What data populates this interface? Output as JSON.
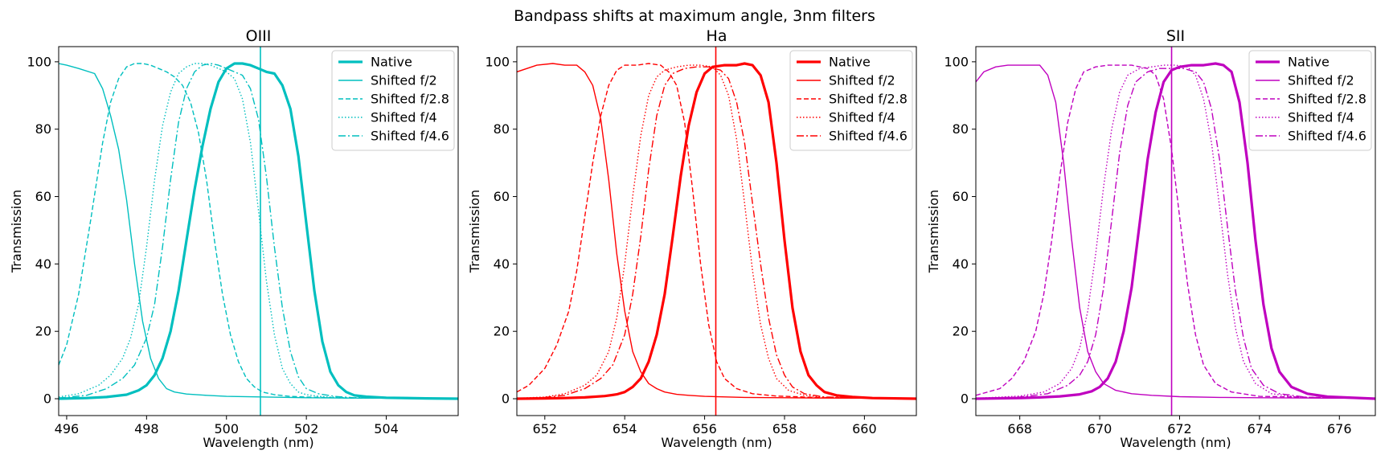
{
  "figure": {
    "title": "Bandpass shifts at maximum angle, 3nm filters"
  },
  "series_labels": [
    "Native",
    "Shifted f/2",
    "Shifted f/2.8",
    "Shifted f/4",
    "Shifted f/4.6"
  ],
  "chart_data": [
    {
      "type": "line",
      "title": "OIII",
      "color": "#00bfbf",
      "xlabel": "Wavelength (nm)",
      "ylabel": "Transmission",
      "xlim": [
        495.8,
        505.8
      ],
      "ylim": [
        -5,
        104.5
      ],
      "xticks": [
        "496",
        "498",
        "500",
        "502",
        "504"
      ],
      "yticks": [
        "0",
        "20",
        "40",
        "60",
        "80",
        "100"
      ],
      "grid": false,
      "legend": "top-right",
      "center_line": 500.85,
      "series": [
        {
          "name": "Native",
          "style": "solid-thick",
          "x": [
            495.8,
            496.5,
            497.0,
            497.5,
            497.8,
            498.0,
            498.2,
            498.4,
            498.6,
            498.8,
            499.0,
            499.2,
            499.4,
            499.6,
            499.8,
            500.0,
            500.2,
            500.4,
            500.6,
            500.8,
            501.0,
            501.2,
            501.4,
            501.6,
            501.8,
            502.0,
            502.2,
            502.4,
            502.6,
            502.8,
            503.0,
            503.2,
            503.5,
            504.0,
            505.0,
            505.8
          ],
          "y": [
            0,
            0.2,
            0.5,
            1.2,
            2.5,
            4,
            7,
            12,
            20,
            32,
            47,
            62,
            75,
            86,
            94,
            98,
            99.5,
            99.5,
            99,
            98,
            97,
            96.5,
            93,
            86,
            72,
            52,
            32,
            17,
            8,
            4,
            2,
            1,
            0.6,
            0.3,
            0.1,
            0
          ]
        },
        {
          "name": "Shifted f/2",
          "style": "solid",
          "x": [
            495.8,
            496.0,
            496.3,
            496.7,
            496.9,
            497.1,
            497.3,
            497.5,
            497.7,
            497.9,
            498.1,
            498.3,
            498.5,
            498.7,
            499.0,
            499.5,
            500.0,
            501.0,
            502.0,
            503.0,
            505.8
          ],
          "y": [
            99.5,
            99,
            98,
            96.5,
            92,
            84,
            74,
            59,
            40,
            23,
            12,
            6,
            3,
            2,
            1.4,
            1,
            0.7,
            0.5,
            0.3,
            0.2,
            0.1
          ]
        },
        {
          "name": "Shifted f/2.8",
          "style": "dashed",
          "x": [
            495.8,
            496.0,
            496.3,
            496.6,
            496.9,
            497.1,
            497.3,
            497.5,
            497.7,
            497.9,
            498.1,
            498.3,
            498.5,
            498.7,
            498.9,
            499.1,
            499.3,
            499.5,
            499.7,
            499.9,
            500.1,
            500.3,
            500.5,
            500.7,
            500.9,
            501.2,
            501.6,
            502.0,
            503.0,
            505.8
          ],
          "y": [
            10,
            16,
            31,
            53,
            76,
            88,
            95,
            98.5,
            99.5,
            99.5,
            99,
            98,
            97,
            95.5,
            93,
            88,
            79,
            65,
            47,
            31,
            19,
            11,
            6,
            3.5,
            2,
            1.2,
            0.7,
            0.5,
            0.2,
            0.1
          ]
        },
        {
          "name": "Shifted f/4",
          "style": "dotted",
          "x": [
            495.8,
            496.3,
            496.8,
            497.1,
            497.4,
            497.6,
            497.8,
            498.0,
            498.2,
            498.4,
            498.6,
            498.8,
            499.0,
            499.2,
            499.4,
            499.6,
            499.8,
            500.0,
            500.2,
            500.4,
            500.6,
            500.8,
            501.0,
            501.2,
            501.4,
            501.6,
            501.8,
            502.0,
            502.4,
            503.0,
            505.8
          ],
          "y": [
            0.5,
            1.5,
            4,
            7,
            12,
            18,
            28,
            45,
            65,
            81,
            91,
            96.5,
            98.5,
            99.5,
            99.5,
            99,
            98,
            97,
            95,
            89,
            76,
            56,
            35,
            19,
            9,
            4.5,
            2,
            1.2,
            0.6,
            0.3,
            0.1
          ]
        },
        {
          "name": "Shifted f/4.6",
          "style": "dashdot",
          "x": [
            495.8,
            496.5,
            497.0,
            497.4,
            497.7,
            498.0,
            498.2,
            498.4,
            498.6,
            498.8,
            499.0,
            499.2,
            499.4,
            499.6,
            499.8,
            500.0,
            500.2,
            500.4,
            500.6,
            500.8,
            501.0,
            501.2,
            501.4,
            501.6,
            501.8,
            502.0,
            502.3,
            502.7,
            503.2,
            505.8
          ],
          "y": [
            0.2,
            1,
            3,
            6,
            10,
            18,
            28,
            45,
            65,
            82,
            92,
            97,
            99,
            99.5,
            99,
            98,
            97,
            96,
            92,
            83,
            66,
            45,
            27,
            14,
            6.5,
            3,
            1.5,
            0.7,
            0.3,
            0.1
          ]
        }
      ]
    },
    {
      "type": "line",
      "title": "Ha",
      "color": "#ff0000",
      "xlabel": "Wavelength (nm)",
      "ylabel": "Transmission",
      "xlim": [
        651.3,
        661.3
      ],
      "ylim": [
        -5,
        104.5
      ],
      "xticks": [
        "652",
        "654",
        "656",
        "658",
        "660"
      ],
      "yticks": [
        "0",
        "20",
        "40",
        "60",
        "80",
        "100"
      ],
      "grid": false,
      "legend": "top-right",
      "center_line": 656.28,
      "series": [
        {
          "name": "Native",
          "style": "solid-thick",
          "x": [
            651.3,
            652.0,
            652.5,
            653.0,
            653.5,
            653.8,
            654.0,
            654.2,
            654.4,
            654.6,
            654.8,
            655.0,
            655.2,
            655.4,
            655.6,
            655.8,
            656.0,
            656.2,
            656.5,
            656.8,
            657.0,
            657.2,
            657.4,
            657.6,
            657.8,
            658.0,
            658.2,
            658.4,
            658.6,
            658.8,
            659.0,
            659.3,
            659.7,
            660.2,
            661.3
          ],
          "y": [
            0,
            0.1,
            0.2,
            0.4,
            0.8,
            1.3,
            2,
            3.5,
            6,
            11,
            19,
            31,
            48,
            66,
            81,
            91,
            96.5,
            98.5,
            99,
            99,
            99.5,
            99,
            96,
            88,
            70,
            47,
            27,
            14,
            7,
            4,
            2,
            1,
            0.5,
            0.2,
            0
          ]
        },
        {
          "name": "Shifted f/2",
          "style": "solid",
          "x": [
            651.3,
            651.8,
            652.2,
            652.5,
            652.8,
            653.0,
            653.2,
            653.4,
            653.6,
            653.8,
            654.0,
            654.2,
            654.4,
            654.6,
            654.8,
            655.0,
            655.3,
            655.6,
            656.0,
            657.0,
            658.0,
            659.0,
            661.3
          ],
          "y": [
            97,
            99,
            99.5,
            99,
            99,
            97,
            93,
            83,
            65,
            43,
            26,
            14,
            8,
            4.5,
            3,
            2,
            1.3,
            1,
            0.7,
            0.4,
            0.3,
            0.2,
            0.1
          ]
        },
        {
          "name": "Shifted f/2.8",
          "style": "dashed",
          "x": [
            651.3,
            651.6,
            652.0,
            652.3,
            652.6,
            652.8,
            653.0,
            653.2,
            653.4,
            653.6,
            653.8,
            654.0,
            654.3,
            654.6,
            654.9,
            655.1,
            655.3,
            655.5,
            655.7,
            655.9,
            656.1,
            656.3,
            656.5,
            656.8,
            657.2,
            657.8,
            659.0,
            661.3
          ],
          "y": [
            2,
            4,
            9,
            16,
            26,
            38,
            54,
            70,
            84,
            93,
            97.5,
            99,
            99,
            99.5,
            99,
            97,
            93,
            82,
            62,
            40,
            22,
            11,
            6,
            3,
            1.5,
            0.8,
            0.3,
            0.1
          ]
        },
        {
          "name": "Shifted f/4",
          "style": "dotted",
          "x": [
            651.3,
            652.0,
            652.5,
            653.0,
            653.3,
            653.6,
            653.8,
            654.0,
            654.2,
            654.4,
            654.6,
            654.8,
            655.0,
            655.3,
            655.6,
            655.9,
            656.2,
            656.4,
            656.6,
            656.8,
            657.0,
            657.2,
            657.4,
            657.6,
            657.8,
            658.1,
            658.5,
            659.0,
            661.3
          ],
          "y": [
            0.1,
            0.5,
            1.5,
            4,
            7,
            14,
            24,
            40,
            60,
            78,
            90,
            95.5,
            97.5,
            98.5,
            99,
            99,
            98.5,
            96,
            90,
            77,
            58,
            38,
            22,
            12,
            6,
            2.5,
            1,
            0.4,
            0.1
          ]
        },
        {
          "name": "Shifted f/4.6",
          "style": "dashdot",
          "x": [
            651.3,
            652.0,
            652.5,
            653.0,
            653.4,
            653.7,
            654.0,
            654.2,
            654.4,
            654.6,
            654.8,
            655.0,
            655.2,
            655.5,
            655.8,
            656.1,
            656.4,
            656.6,
            656.8,
            657.0,
            657.2,
            657.4,
            657.6,
            657.8,
            658.0,
            658.2,
            658.5,
            659.0,
            661.3
          ],
          "y": [
            0.1,
            0.4,
            1,
            3,
            6,
            10,
            19,
            31,
            48,
            68,
            84,
            93,
            96.5,
            98,
            98.5,
            98.5,
            97.5,
            95,
            88,
            76,
            58,
            40,
            24,
            13,
            7,
            3.5,
            1.5,
            0.5,
            0.1
          ]
        }
      ]
    },
    {
      "type": "line",
      "title": "SII",
      "color": "#bf00bf",
      "xlabel": "Wavelength (nm)",
      "ylabel": "Transmission",
      "xlim": [
        666.9,
        676.9
      ],
      "ylim": [
        -5,
        104.5
      ],
      "xticks": [
        "668",
        "670",
        "672",
        "674",
        "676"
      ],
      "yticks": [
        "0",
        "20",
        "40",
        "60",
        "80",
        "100"
      ],
      "grid": false,
      "legend": "top-right",
      "center_line": 671.8,
      "series": [
        {
          "name": "Native",
          "style": "solid-thick",
          "x": [
            666.9,
            668.0,
            668.5,
            669.0,
            669.5,
            669.8,
            670.0,
            670.2,
            670.4,
            670.6,
            670.8,
            671.0,
            671.2,
            671.4,
            671.6,
            671.8,
            672.0,
            672.3,
            672.6,
            672.9,
            673.1,
            673.3,
            673.5,
            673.7,
            673.9,
            674.1,
            674.3,
            674.5,
            674.8,
            675.2,
            675.7,
            676.9
          ],
          "y": [
            0,
            0.2,
            0.4,
            0.7,
            1.3,
            2.2,
            3.5,
            6,
            11,
            20,
            33,
            52,
            71,
            85,
            94,
            97.5,
            98.5,
            99,
            99,
            99.5,
            99,
            97,
            88,
            70,
            47,
            28,
            15,
            8,
            3.5,
            1.5,
            0.6,
            0
          ]
        },
        {
          "name": "Shifted f/2",
          "style": "solid",
          "x": [
            666.9,
            667.1,
            667.4,
            667.7,
            668.0,
            668.3,
            668.5,
            668.7,
            668.9,
            669.1,
            669.3,
            669.5,
            669.7,
            669.9,
            670.1,
            670.4,
            670.8,
            671.3,
            672.0,
            673.0,
            674.0,
            676.9
          ],
          "y": [
            94,
            97,
            98.5,
            99,
            99,
            99,
            99,
            96,
            88,
            70,
            47,
            27,
            14,
            8,
            4.5,
            2.5,
            1.5,
            1,
            0.6,
            0.4,
            0.3,
            0.1
          ]
        },
        {
          "name": "Shifted f/2.8",
          "style": "dashed",
          "x": [
            666.9,
            667.5,
            667.8,
            668.1,
            668.4,
            668.6,
            668.8,
            669.0,
            669.2,
            669.4,
            669.6,
            669.9,
            670.2,
            670.5,
            670.8,
            671.0,
            671.2,
            671.4,
            671.6,
            671.8,
            672.0,
            672.2,
            672.4,
            672.6,
            672.9,
            673.3,
            674.0,
            676.9
          ],
          "y": [
            1,
            3,
            6,
            11,
            20,
            31,
            47,
            66,
            82,
            92,
            97,
            98.5,
            99,
            99,
            99,
            98.5,
            98,
            96,
            89,
            74,
            54,
            34,
            19,
            10,
            4.5,
            2,
            0.7,
            0.1
          ]
        },
        {
          "name": "Shifted f/4",
          "style": "dotted",
          "x": [
            666.9,
            668.0,
            668.6,
            669.0,
            669.3,
            669.5,
            669.7,
            669.9,
            670.1,
            670.3,
            670.5,
            670.7,
            671.0,
            671.3,
            671.6,
            671.9,
            672.2,
            672.4,
            672.6,
            672.8,
            673.0,
            673.2,
            673.4,
            673.6,
            673.9,
            674.3,
            675.0,
            676.9
          ],
          "y": [
            0.1,
            0.8,
            2,
            4.5,
            9,
            15,
            26,
            43,
            63,
            80,
            91,
            96,
            98,
            98.5,
            99,
            99,
            98.5,
            96,
            89,
            76,
            57,
            37,
            21,
            11,
            4.5,
            1.5,
            0.4,
            0.1
          ]
        },
        {
          "name": "Shifted f/4.6",
          "style": "dashdot",
          "x": [
            666.9,
            668.0,
            668.7,
            669.2,
            669.5,
            669.7,
            669.9,
            670.1,
            670.3,
            670.5,
            670.7,
            670.9,
            671.2,
            671.5,
            671.8,
            672.1,
            672.4,
            672.6,
            672.8,
            673.0,
            673.2,
            673.4,
            673.6,
            673.8,
            674.1,
            674.5,
            675.2,
            676.9
          ],
          "y": [
            0.1,
            0.5,
            1.5,
            4,
            7,
            11,
            19,
            33,
            53,
            73,
            87,
            94,
            97,
            98,
            98,
            98,
            97,
            94,
            86,
            71,
            51,
            32,
            18,
            9,
            4,
            1.5,
            0.4,
            0.1
          ]
        }
      ]
    }
  ]
}
